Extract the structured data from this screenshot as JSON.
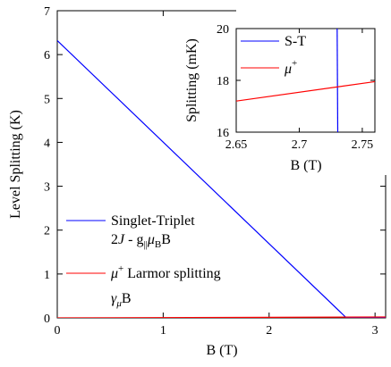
{
  "chart_data": [
    {
      "type": "line",
      "xlabel": "B (T)",
      "ylabel": "Level Splitting (K)",
      "xlim": [
        0,
        3.1
      ],
      "ylim": [
        0,
        7
      ],
      "x_ticks": [
        "0",
        "1",
        "2",
        "3"
      ],
      "y_ticks": [
        "0",
        "1",
        "2",
        "3",
        "4",
        "5",
        "6",
        "7"
      ],
      "grid": false,
      "legend_position": "center-left",
      "series": [
        {
          "name_line1": "Singlet-Triplet",
          "name_line2": "2J - g∥μBB",
          "color": "#0000ff",
          "x": [
            0,
            2.73,
            3.1
          ],
          "y": [
            6.32,
            0.0,
            0.0
          ]
        },
        {
          "name_line1": "μ+ Larmor splitting",
          "name_line2": "γμB",
          "color": "#ff0000",
          "x": [
            0,
            3.1
          ],
          "y": [
            0.0,
            0.0202
          ]
        }
      ]
    },
    {
      "type": "line",
      "inset": true,
      "xlabel": "B (T)",
      "ylabel": "Splitting (mK)",
      "xlim": [
        2.65,
        2.76
      ],
      "ylim": [
        16,
        20
      ],
      "x_ticks": [
        "2.65",
        "2.7",
        "2.75"
      ],
      "y_ticks": [
        "16",
        "18",
        "20"
      ],
      "legend_position": "top-right",
      "series": [
        {
          "name": "S-T",
          "color": "#0000ff",
          "x": [
            2.73,
            2.7306
          ],
          "y": [
            20.5,
            15.5
          ]
        },
        {
          "name": "μ+",
          "color": "#ff0000",
          "x": [
            2.65,
            2.76
          ],
          "y": [
            17.2,
            17.95
          ]
        }
      ]
    }
  ]
}
